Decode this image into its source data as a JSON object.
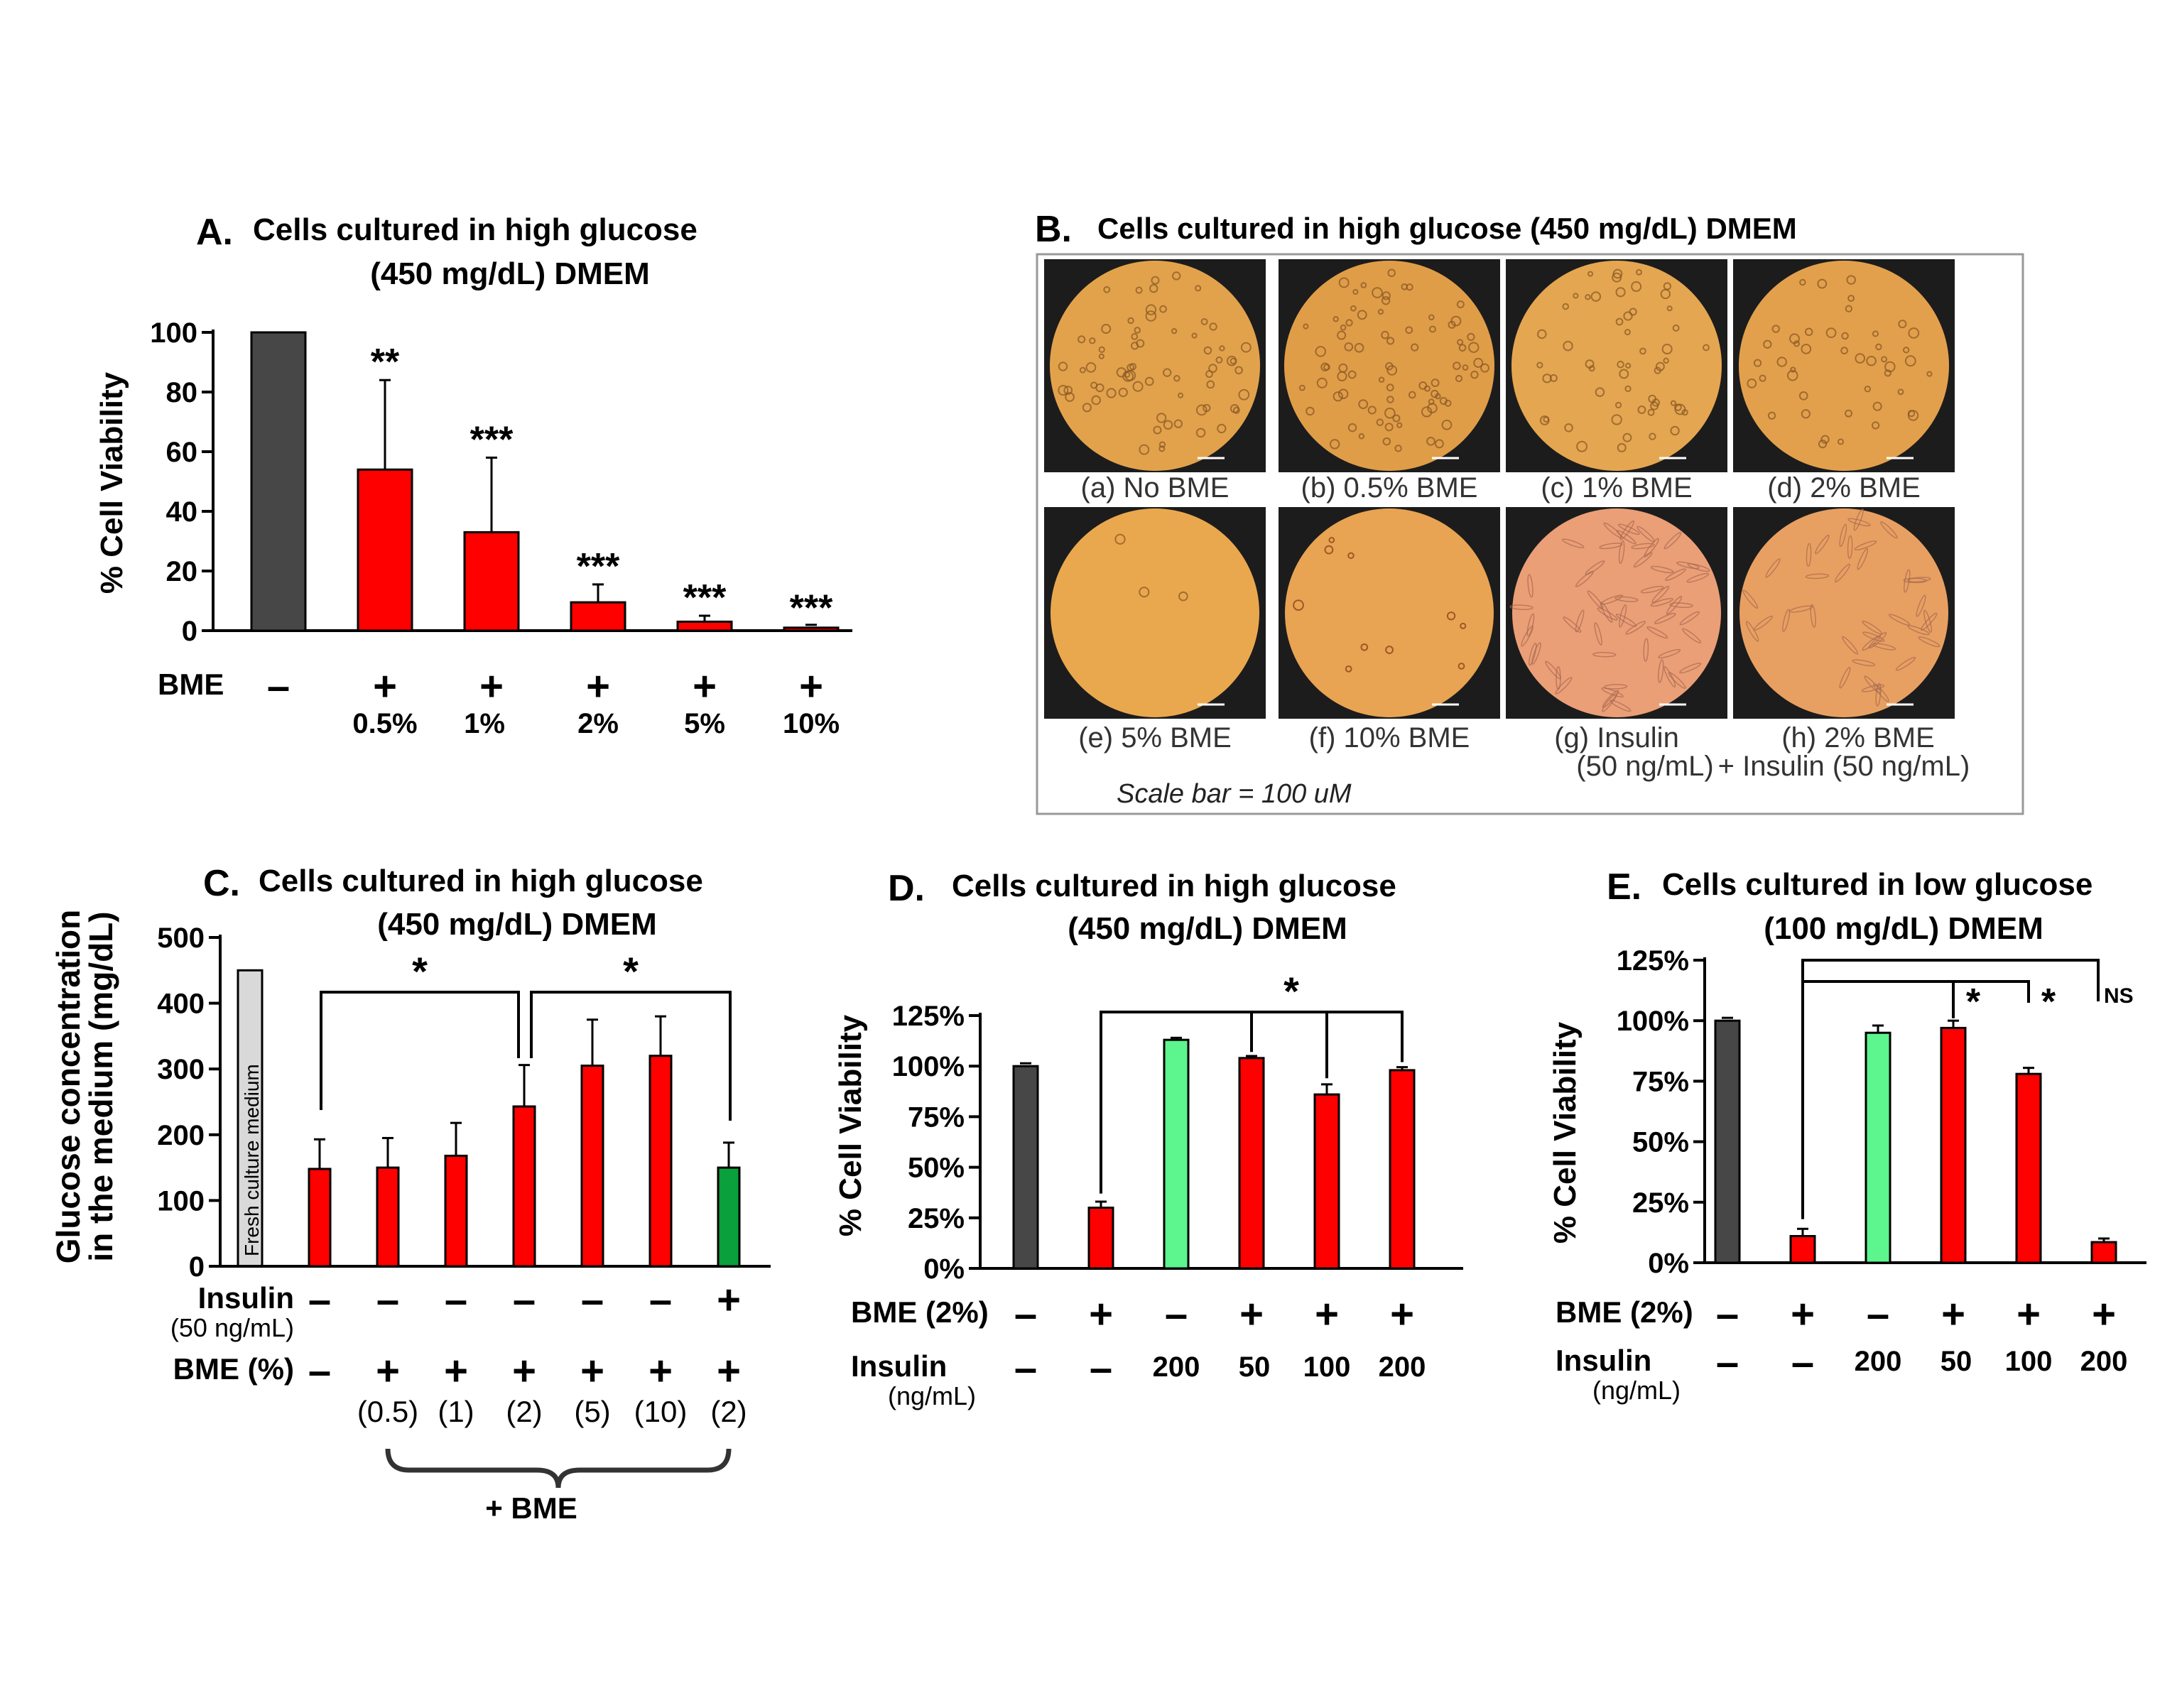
{
  "colors": {
    "dark": "#474747",
    "red": "#ff0000",
    "lightgreen": "#5cf58e",
    "green": "#0aa03c",
    "fresh": "#d9d9d9"
  },
  "panelB": {
    "letter": "B.",
    "title": "Cells cultured in high glucose (450 mg/dL)  DMEM",
    "scale": "Scale bar = 100 uM",
    "images": [
      {
        "label1": "(a) No BME",
        "label2": "",
        "tone": "#e2a24c"
      },
      {
        "label1": "(b) 0.5% BME",
        "label2": "",
        "tone": "#e09d48"
      },
      {
        "label1": "(c) 1% BME",
        "label2": "",
        "tone": "#e5a651"
      },
      {
        "label1": "(d) 2% BME",
        "label2": "",
        "tone": "#e3a04c"
      },
      {
        "label1": "(e) 5% BME",
        "label2": "",
        "tone": "#eaa84e"
      },
      {
        "label1": "(f) 10% BME",
        "label2": "",
        "tone": "#e8a452"
      },
      {
        "label1": "(g) Insulin",
        "label2": "(50 ng/mL)",
        "tone": "#eb9f77"
      },
      {
        "label1": "(h) 2% BME",
        "label2": "+ Insulin (50 ng/mL)",
        "tone": "#e8a062"
      }
    ]
  },
  "chart_data": [
    {
      "id": "A",
      "type": "bar",
      "letter": "A.",
      "title": [
        "Cells cultured in high glucose",
        "(450 mg/dL)  DMEM"
      ],
      "ylabel": "% Cell Viability",
      "ylim": [
        0,
        100
      ],
      "yticks": [
        "0",
        "20",
        "40",
        "60",
        "80",
        "100"
      ],
      "values": [
        100,
        54,
        33,
        9.5,
        3,
        1
      ],
      "errors": [
        0,
        30,
        25,
        6,
        2,
        0.5
      ],
      "colors": [
        "dark",
        "red",
        "red",
        "red",
        "red",
        "red"
      ],
      "significance": [
        "",
        "**",
        "***",
        "***",
        "***",
        "***"
      ],
      "rows": [
        {
          "label": "BME",
          "sub": "",
          "items": [
            "–",
            "+",
            "+",
            "+",
            "+",
            "+"
          ]
        },
        {
          "label": "",
          "sub": "",
          "items": [
            "",
            "0.5%",
            "1%",
            "2%",
            "5%",
            "10%"
          ]
        }
      ]
    },
    {
      "id": "C",
      "type": "bar",
      "letter": "C.",
      "title": [
        "Cells cultured in high glucose",
        "(450 mg/dL)  DMEM"
      ],
      "ylabel": [
        "Glucose concentration",
        "in the medium (mg/dL)"
      ],
      "ylim": [
        0,
        500
      ],
      "yticks": [
        "0",
        "100",
        "200",
        "300",
        "400",
        "500"
      ],
      "fresh": {
        "value": 450,
        "label": "Fresh culture medium"
      },
      "values": [
        148,
        150,
        168,
        243,
        305,
        320,
        150
      ],
      "errors": [
        45,
        45,
        50,
        63,
        70,
        60,
        38
      ],
      "colors": [
        "red",
        "red",
        "red",
        "red",
        "red",
        "red",
        "green"
      ],
      "brackets": [
        {
          "from": 0,
          "to": 3,
          "label": "*"
        },
        {
          "from": 3,
          "to": 6,
          "label": "*"
        }
      ],
      "rows": [
        {
          "label": "Insulin",
          "sub": "(50 ng/mL)",
          "items": [
            "–",
            "–",
            "–",
            "–",
            "–",
            "–",
            "+"
          ]
        },
        {
          "label": "BME (%)",
          "sub": "",
          "items": [
            "–",
            "+",
            "+",
            "+",
            "+",
            "+",
            "+"
          ]
        },
        {
          "label": "",
          "sub": "",
          "items": [
            "",
            "(0.5)",
            "(1)",
            "(2)",
            "(5)",
            "(10)",
            "(2)"
          ]
        }
      ],
      "group_label": "+ BME"
    },
    {
      "id": "D",
      "type": "bar",
      "letter": "D.",
      "title": [
        "Cells cultured in high glucose",
        "(450 mg/dL)  DMEM"
      ],
      "ylabel": "% Cell Viability",
      "ylim": [
        0,
        125
      ],
      "yticks": [
        "0%",
        "25%",
        "50%",
        "75%",
        "100%",
        "125%"
      ],
      "values": [
        100,
        30,
        113,
        104,
        86,
        98
      ],
      "errors": [
        0.5,
        3,
        1,
        1,
        5,
        1.5
      ],
      "colors": [
        "dark",
        "red",
        "lightgreen",
        "red",
        "red",
        "red"
      ],
      "star": "*",
      "rows": [
        {
          "label": "BME (2%)",
          "sub": "",
          "items": [
            "–",
            "+",
            "–",
            "+",
            "+",
            "+"
          ]
        },
        {
          "label": "Insulin",
          "sub": "(ng/mL)",
          "items": [
            "–",
            "–",
            "200",
            "50",
            "100",
            "200"
          ]
        }
      ]
    },
    {
      "id": "E",
      "type": "bar",
      "letter": "E.",
      "title": [
        "Cells cultured in low glucose",
        "(100 mg/dL)  DMEM"
      ],
      "ylabel": "% Cell Viability",
      "ylim": [
        0,
        125
      ],
      "yticks": [
        "0%",
        "25%",
        "50%",
        "75%",
        "100%",
        "125%"
      ],
      "values": [
        100,
        11,
        95,
        97,
        78,
        8.5
      ],
      "errors": [
        0.5,
        3,
        3,
        3,
        2.5,
        1.5
      ],
      "colors": [
        "dark",
        "red",
        "lightgreen",
        "red",
        "red",
        "red"
      ],
      "marks": [
        "*",
        "*",
        "NS"
      ],
      "rows": [
        {
          "label": "BME (2%)",
          "sub": "",
          "items": [
            "–",
            "+",
            "–",
            "+",
            "+",
            "+"
          ]
        },
        {
          "label": "Insulin",
          "sub": "(ng/mL)",
          "items": [
            "–",
            "–",
            "200",
            "50",
            "100",
            "200"
          ]
        }
      ]
    }
  ]
}
